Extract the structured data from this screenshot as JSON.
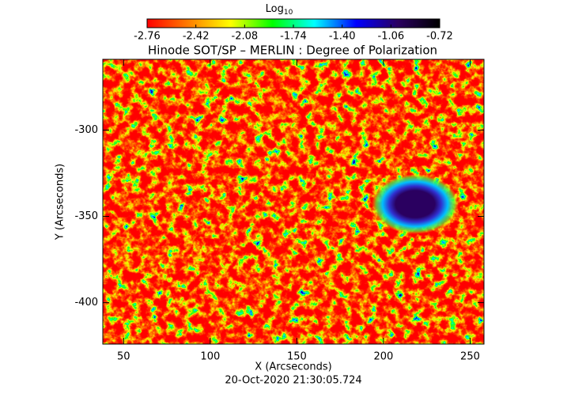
{
  "chart_data": {
    "type": "heatmap",
    "title": "Hinode SOT/SP – MERLIN : Degree of Polarization",
    "x_label": "X (Arcseconds)",
    "y_label": "Y (Arcseconds)",
    "footer": "20-Oct-2020 21:30:05.724",
    "colorbar_label": "Log",
    "colorbar_label_subscript": "10",
    "colorbar_lim": [
      -2.76,
      -0.72
    ],
    "colorbar_ticks": [
      -2.76,
      -2.42,
      -2.08,
      -1.74,
      -1.4,
      -1.06,
      -0.72
    ],
    "colormap": [
      "#ff0000",
      "#ff7f00",
      "#ffff00",
      "#00ff00",
      "#00ffff",
      "#0000ff",
      "#2a0060",
      "#000000"
    ],
    "xlim": [
      38,
      258
    ],
    "ylim": [
      -424,
      -259
    ],
    "xticks": [
      50,
      100,
      150,
      200,
      250
    ],
    "yticks": [
      -300,
      -350,
      -400
    ]
  }
}
